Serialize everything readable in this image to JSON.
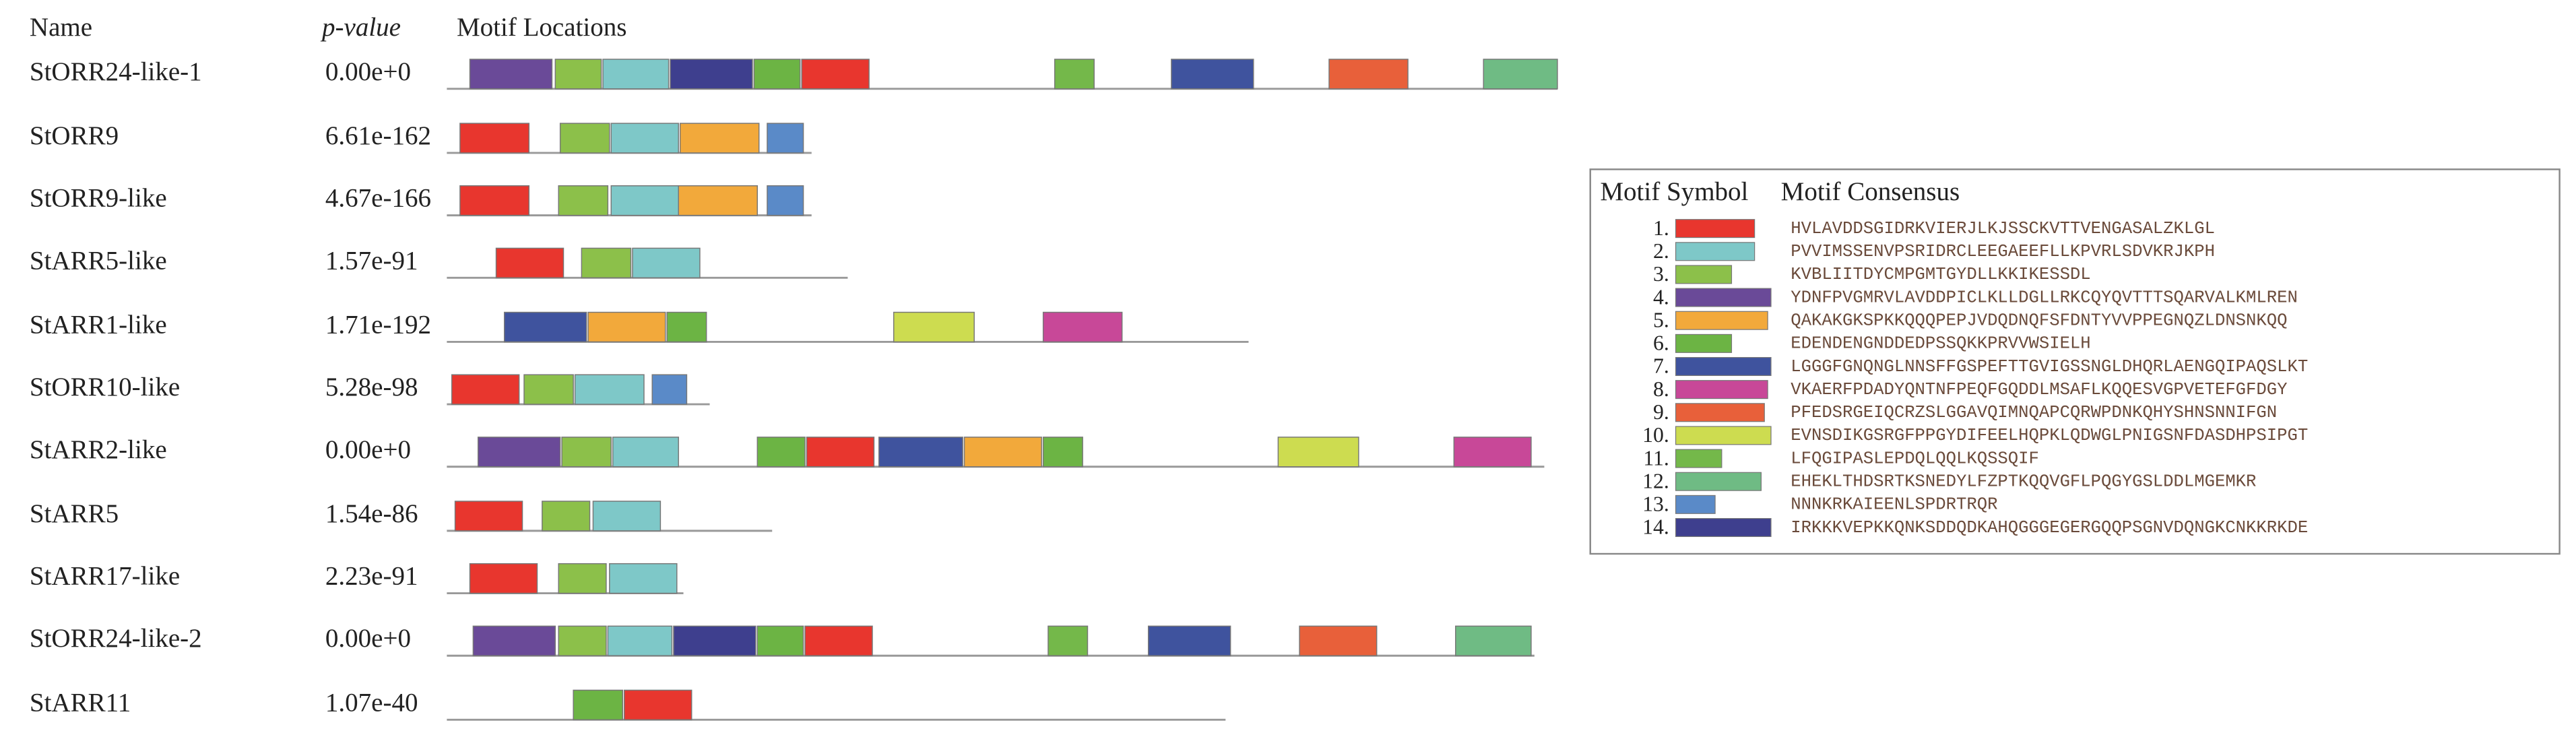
{
  "header": {
    "name": "Name",
    "pvalue": "p-value",
    "locations": "Motif Locations"
  },
  "rows": [
    {
      "name": "StORR24-like-1",
      "pvalue": "0.00e+0"
    },
    {
      "name": "StORR9",
      "pvalue": "6.61e-162"
    },
    {
      "name": "StORR9-like",
      "pvalue": "4.67e-166"
    },
    {
      "name": "StARR5-like",
      "pvalue": "1.57e-91"
    },
    {
      "name": "StARR1-like",
      "pvalue": "1.71e-192"
    },
    {
      "name": "StORR10-like",
      "pvalue": "5.28e-98"
    },
    {
      "name": "StARR2-like",
      "pvalue": "0.00e+0"
    },
    {
      "name": "StARR5",
      "pvalue": "1.54e-86"
    },
    {
      "name": "StARR17-like",
      "pvalue": "2.23e-91"
    },
    {
      "name": "StORR24-like-2",
      "pvalue": "0.00e+0"
    },
    {
      "name": "StARR11",
      "pvalue": "1.07e-40"
    }
  ],
  "legend": {
    "symbol_header": "Motif Symbol",
    "consensus_header": "Motif Consensus",
    "motifs": [
      {
        "number": "1.",
        "color": "#e8362e",
        "consensus": "HVLAVDDSGIDRKVIERJLKJSSCKVTTVENGASALZKLGL"
      },
      {
        "number": "2.",
        "color": "#7ec8c8",
        "consensus": "PVVIMSSENVPSRIDRCLEEGAEEFLLKPVRLSDVKRJKPH"
      },
      {
        "number": "3.",
        "color": "#8cc04a",
        "consensus": "KVBLIITDYCMPGMTGYDLLKKIKESSDL"
      },
      {
        "number": "4.",
        "color": "#6a4a98",
        "consensus": "YDNFPVGMRVLAVDDPICLKLLDGLLRKCQYQVTTTSQARVALKMLREN"
      },
      {
        "number": "5.",
        "color": "#f2a93b",
        "consensus": "QAKAKGKSPKKQQQPEPJVDQDNQFSFDNTYVVPPEGNQZLDNSNKQQ"
      },
      {
        "number": "6.",
        "color": "#6cb444",
        "consensus": "EDENDENGNDDEDPSSQKKPRVVWSIELH"
      },
      {
        "number": "7.",
        "color": "#3f539e",
        "consensus": "LGGGFGNQNGLNNSFFGSPEFTTGVIGSSNGLDHQRLAENGQIPAQSLKT"
      },
      {
        "number": "8.",
        "color": "#c84898",
        "consensus": "VKAERFPDADYQNTNFPEQFGQDDLMSAFLKQQESVGPVETEFGFDGY"
      },
      {
        "number": "9.",
        "color": "#e8603a",
        "consensus": "PFEDSRGEIQCRZSLGGAVQIMNQAPCQRWPDNKQHYSHNSNNIFGN"
      },
      {
        "number": "10.",
        "color": "#cddc50",
        "consensus": "EVNSDIKGSRGFPPGYDIFEELHQPKLQDWGLPNIGSNFDASDHPSIPGT"
      },
      {
        "number": "11.",
        "color": "#74b84a",
        "consensus": "LFQGIPASLEPDQLQQLKQSSQIF"
      },
      {
        "number": "12.",
        "color": "#6fbb84",
        "consensus": "EHEKLTHDSRTKSNEDYLFZPTKQQVGFLPQGYGSLDDLMGEMKR"
      },
      {
        "number": "13.",
        "color": "#5a8ac8",
        "consensus": "NNNKRKAIEENLSPDRTRQR"
      },
      {
        "number": "14.",
        "color": "#3e3f8e",
        "consensus": "IRKKKVEPKKQNKSDDQDKAHQGGGEGERGQQPSGNVDQNGKCNKKRKDE"
      }
    ]
  }
}
